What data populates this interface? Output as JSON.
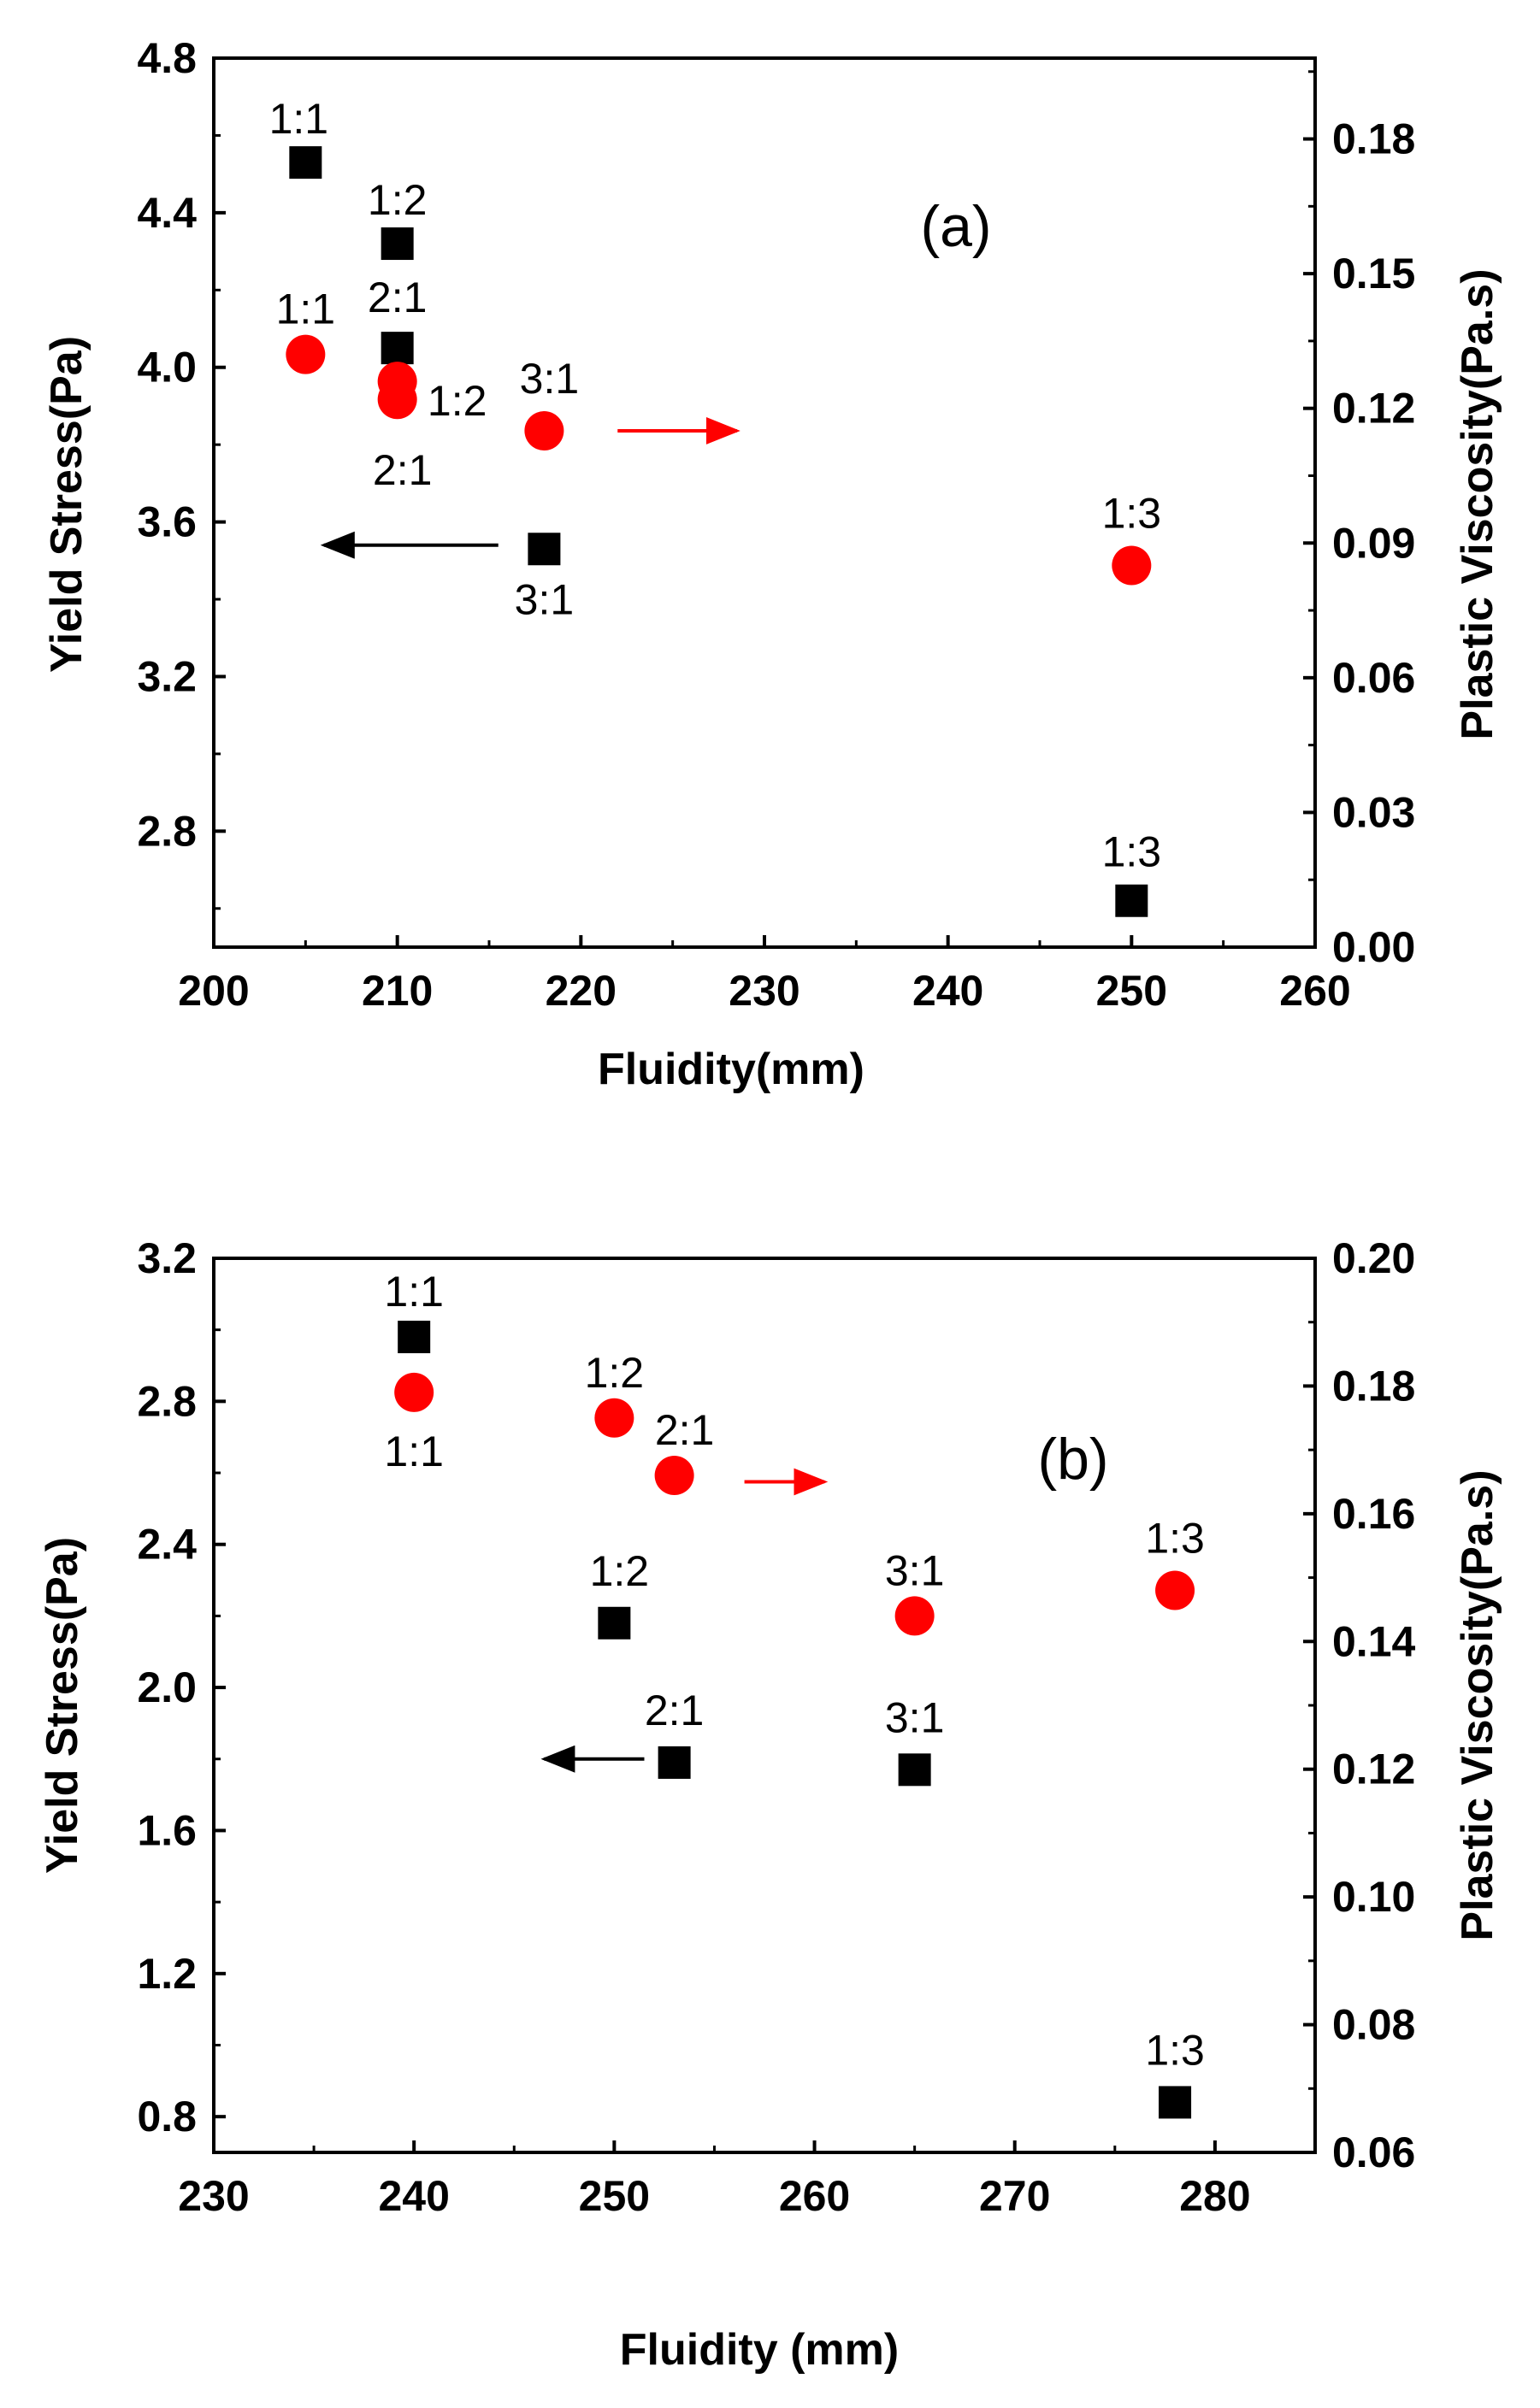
{
  "chart_data": [
    {
      "type": "scatter",
      "panel_label": "(a)",
      "xlabel": "Fluidity(mm)",
      "ylabel": "Yield Stress(Pa)",
      "y2label": "Plastic Viscosity(Pa.s)",
      "xlim": [
        200,
        260
      ],
      "ylim": [
        2.5,
        4.8
      ],
      "y2lim": [
        0.0,
        0.198
      ],
      "xticks": [
        200,
        210,
        220,
        230,
        240,
        250,
        260
      ],
      "xtick_labels": [
        "200",
        "210",
        "220",
        "230",
        "240",
        "250",
        "260"
      ],
      "yticks": [
        2.8,
        3.2,
        3.6,
        4.0,
        4.4,
        4.8
      ],
      "ytick_labels": [
        "2.8",
        "3.2",
        "3.6",
        "4.0",
        "4.4",
        "4.8"
      ],
      "y2ticks": [
        0.0,
        0.03,
        0.06,
        0.09,
        0.12,
        0.15,
        0.18
      ],
      "y2tick_labels": [
        "0.00",
        "0.03",
        "0.06",
        "0.09",
        "0.12",
        "0.15",
        "0.18"
      ],
      "series": [
        {
          "name": "Yield Stress",
          "axis": "left",
          "marker": "square",
          "color": "#000000",
          "points": [
            {
              "x": 205,
              "y": 4.53,
              "label": "1:1"
            },
            {
              "x": 210,
              "y": 4.32,
              "label": "1:2"
            },
            {
              "x": 210,
              "y": 4.05,
              "label": "2:1"
            },
            {
              "x": 218,
              "y": 3.53,
              "label": "3:1"
            },
            {
              "x": 250,
              "y": 2.62,
              "label": "1:3"
            }
          ]
        },
        {
          "name": "Plastic Viscosity",
          "axis": "right",
          "marker": "circle",
          "color": "#ff0000",
          "points": [
            {
              "x": 205,
              "y": 0.132,
              "label": "1:1"
            },
            {
              "x": 210,
              "y": 0.126,
              "label": "1:2"
            },
            {
              "x": 210,
              "y": 0.122,
              "label": "2:1"
            },
            {
              "x": 218,
              "y": 0.115,
              "label": "3:1"
            },
            {
              "x": 250,
              "y": 0.085,
              "label": "1:3"
            }
          ]
        }
      ],
      "annotations": [
        {
          "type": "arrow",
          "direction": "left",
          "color": "#000000",
          "x_from": 215.5,
          "x_to": 206,
          "y": 3.54,
          "axis": "left"
        },
        {
          "type": "arrow",
          "direction": "right",
          "color": "#ff0000",
          "x_from": 222,
          "x_to": 228.5,
          "y": 0.115,
          "axis": "right"
        }
      ]
    },
    {
      "type": "scatter",
      "panel_label": "(b)",
      "xlabel": "Fluidity (mm)",
      "ylabel": "Yield Stress(Pa)",
      "y2label": "Plastic Viscosity(Pa.s)",
      "xlim": [
        230,
        285
      ],
      "ylim": [
        0.7,
        3.2
      ],
      "y2lim": [
        0.06,
        0.2
      ],
      "xticks": [
        230,
        240,
        250,
        260,
        270,
        280
      ],
      "xtick_labels": [
        "230",
        "240",
        "250",
        "260",
        "270",
        "280"
      ],
      "yticks": [
        0.8,
        1.2,
        1.6,
        2.0,
        2.4,
        2.8,
        3.2
      ],
      "ytick_labels": [
        "0.8",
        "1.2",
        "1.6",
        "2.0",
        "2.4",
        "2.8",
        "3.2"
      ],
      "y2ticks": [
        0.06,
        0.08,
        0.1,
        0.12,
        0.14,
        0.16,
        0.18,
        0.2
      ],
      "y2tick_labels": [
        "0.06",
        "0.08",
        "0.10",
        "0.12",
        "0.14",
        "0.16",
        "0.18",
        "0.20"
      ],
      "series": [
        {
          "name": "Yield Stress",
          "axis": "left",
          "marker": "square",
          "color": "#000000",
          "points": [
            {
              "x": 240,
              "y": 2.98,
              "label": "1:1"
            },
            {
              "x": 250,
              "y": 2.18,
              "label": "1:2"
            },
            {
              "x": 253,
              "y": 1.79,
              "label": "2:1"
            },
            {
              "x": 265,
              "y": 1.77,
              "label": "3:1"
            },
            {
              "x": 278,
              "y": 0.84,
              "label": "1:3"
            }
          ]
        },
        {
          "name": "Plastic Viscosity",
          "axis": "right",
          "marker": "circle",
          "color": "#ff0000",
          "points": [
            {
              "x": 240,
              "y": 0.179,
              "label": "1:1"
            },
            {
              "x": 250,
              "y": 0.175,
              "label": "1:2"
            },
            {
              "x": 253,
              "y": 0.166,
              "label": "2:1"
            },
            {
              "x": 265,
              "y": 0.144,
              "label": "3:1"
            },
            {
              "x": 278,
              "y": 0.148,
              "label": "1:3"
            }
          ]
        }
      ],
      "annotations": [
        {
          "type": "arrow",
          "direction": "left",
          "color": "#000000",
          "x_from": 251.5,
          "x_to": 246.5,
          "y": 1.8,
          "axis": "left"
        },
        {
          "type": "arrow",
          "direction": "right",
          "color": "#ff0000",
          "x_from": 256.5,
          "x_to": 260.5,
          "y": 0.165,
          "axis": "right"
        }
      ]
    }
  ]
}
